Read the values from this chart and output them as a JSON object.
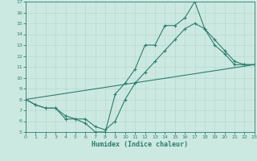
{
  "xlabel": "Humidex (Indice chaleur)",
  "background_color": "#cce9e1",
  "line_color": "#2e7d6e",
  "grid_color": "#b0d4cc",
  "xlim": [
    0,
    23
  ],
  "ylim": [
    5,
    17
  ],
  "xticks": [
    0,
    1,
    2,
    3,
    4,
    5,
    6,
    7,
    8,
    9,
    10,
    11,
    12,
    13,
    14,
    15,
    16,
    17,
    18,
    19,
    20,
    21,
    22,
    23
  ],
  "yticks": [
    5,
    6,
    7,
    8,
    9,
    10,
    11,
    12,
    13,
    14,
    15,
    16,
    17
  ],
  "line1_x": [
    0,
    1,
    2,
    3,
    4,
    5,
    6,
    7,
    8,
    9,
    10,
    11,
    12,
    13,
    14,
    15,
    16,
    17,
    18,
    19,
    20,
    21,
    22,
    23
  ],
  "line1_y": [
    8.0,
    7.5,
    7.2,
    7.2,
    6.2,
    6.2,
    5.8,
    5.0,
    5.0,
    8.5,
    9.5,
    10.8,
    13.0,
    13.0,
    14.8,
    14.8,
    15.5,
    17.0,
    14.5,
    13.0,
    12.2,
    11.2,
    11.2,
    11.2
  ],
  "line2_x": [
    0,
    1,
    2,
    3,
    4,
    5,
    6,
    7,
    8,
    9,
    10,
    11,
    12,
    13,
    14,
    15,
    16,
    17,
    18,
    19,
    20,
    21,
    22,
    23
  ],
  "line2_y": [
    8.0,
    7.5,
    7.2,
    7.2,
    6.5,
    6.2,
    6.2,
    5.5,
    5.2,
    6.0,
    8.0,
    9.5,
    10.5,
    11.5,
    12.5,
    13.5,
    14.5,
    15.0,
    14.5,
    13.5,
    12.5,
    11.5,
    11.2,
    11.2
  ],
  "line3_x": [
    0,
    23
  ],
  "line3_y": [
    8.0,
    11.2
  ]
}
